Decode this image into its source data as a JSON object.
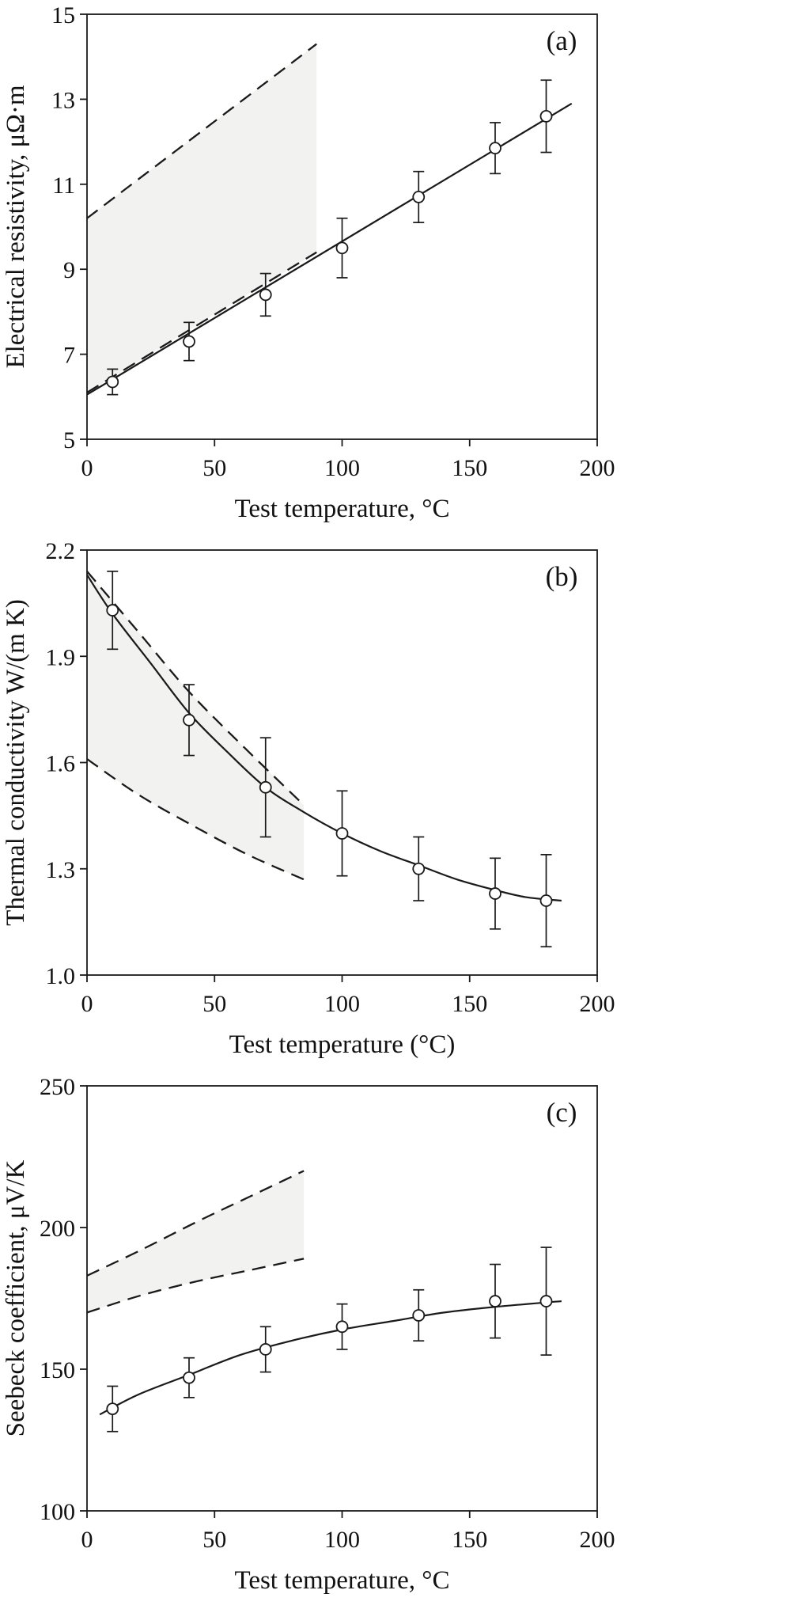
{
  "figure": {
    "background": "#ffffff",
    "ink_color": "#1a1a1a",
    "panel_labels": [
      "(a)",
      "(b)",
      "(c)"
    ]
  },
  "chart_data": [
    {
      "type": "scatter",
      "panel_label": "(a)",
      "xlabel": "Test temperature, °C",
      "ylabel": "Electrical resistivity, μΩ·m",
      "xlim": [
        0,
        200
      ],
      "ylim": [
        5,
        15
      ],
      "xticks": [
        0,
        50,
        100,
        150,
        200
      ],
      "xtick_labels": [
        "0",
        "50",
        "100",
        "150",
        "200"
      ],
      "yticks": [
        5,
        7,
        9,
        11,
        13,
        15
      ],
      "ytick_labels": [
        "5",
        "7",
        "9",
        "11",
        "13",
        "15"
      ],
      "grid": false,
      "legend": null,
      "marker": "open-circle",
      "x": [
        10,
        40,
        70,
        100,
        130,
        160,
        180
      ],
      "y": [
        6.35,
        7.3,
        8.4,
        9.5,
        10.7,
        11.85,
        12.6
      ],
      "y_err": [
        0.3,
        0.45,
        0.5,
        0.7,
        0.6,
        0.6,
        0.85
      ],
      "fit": [
        [
          0,
          6.05
        ],
        [
          190,
          12.9
        ]
      ],
      "band": {
        "fill": "#f2f2f0",
        "upper": [
          [
            0,
            10.2
          ],
          [
            45,
            12.25
          ],
          [
            90,
            14.3
          ]
        ],
        "lower": [
          [
            0,
            6.1
          ],
          [
            45,
            7.75
          ],
          [
            90,
            9.4
          ]
        ]
      }
    },
    {
      "type": "scatter",
      "panel_label": "(b)",
      "xlabel": "Test temperature (°C)",
      "ylabel": "Thermal conductivity W/(m K)",
      "xlim": [
        0,
        200
      ],
      "ylim": [
        1.0,
        2.2
      ],
      "xticks": [
        0,
        50,
        100,
        150,
        200
      ],
      "xtick_labels": [
        "0",
        "50",
        "100",
        "150",
        "200"
      ],
      "yticks": [
        1.0,
        1.3,
        1.6,
        1.9,
        2.2
      ],
      "ytick_labels": [
        "1.0",
        "1.3",
        "1.6",
        "1.9",
        "2.2"
      ],
      "grid": false,
      "legend": null,
      "marker": "open-circle",
      "x": [
        10,
        40,
        70,
        100,
        130,
        160,
        180
      ],
      "y": [
        2.03,
        1.72,
        1.53,
        1.4,
        1.3,
        1.23,
        1.21
      ],
      "y_err": [
        0.11,
        0.1,
        0.14,
        0.12,
        0.09,
        0.1,
        0.13
      ],
      "fit": [
        [
          0,
          2.13
        ],
        [
          10,
          2.02
        ],
        [
          25,
          1.88
        ],
        [
          40,
          1.74
        ],
        [
          55,
          1.63
        ],
        [
          70,
          1.53
        ],
        [
          85,
          1.46
        ],
        [
          100,
          1.4
        ],
        [
          115,
          1.35
        ],
        [
          130,
          1.31
        ],
        [
          145,
          1.27
        ],
        [
          160,
          1.24
        ],
        [
          172,
          1.22
        ],
        [
          186,
          1.21
        ]
      ],
      "band": {
        "fill": "#f2f2f0",
        "upper": [
          [
            0,
            2.14
          ],
          [
            20,
            1.97
          ],
          [
            40,
            1.8
          ],
          [
            62,
            1.64
          ],
          [
            85,
            1.48
          ]
        ],
        "lower": [
          [
            0,
            1.61
          ],
          [
            20,
            1.51
          ],
          [
            42,
            1.42
          ],
          [
            63,
            1.34
          ],
          [
            85,
            1.27
          ]
        ]
      }
    },
    {
      "type": "scatter",
      "panel_label": "(c)",
      "xlabel": "Test temperature, °C",
      "ylabel": "Seebeck coefficient, μV/K",
      "xlim": [
        0,
        200
      ],
      "ylim": [
        100,
        250
      ],
      "xticks": [
        0,
        50,
        100,
        150,
        200
      ],
      "xtick_labels": [
        "0",
        "50",
        "100",
        "150",
        "200"
      ],
      "yticks": [
        100,
        150,
        200,
        250
      ],
      "ytick_labels": [
        "100",
        "150",
        "200",
        "250"
      ],
      "grid": false,
      "legend": null,
      "marker": "open-circle",
      "x": [
        10,
        40,
        70,
        100,
        130,
        160,
        180
      ],
      "y": [
        136,
        147,
        157,
        165,
        169,
        174,
        174
      ],
      "y_err": [
        8,
        7,
        8,
        8,
        9,
        13,
        19
      ],
      "fit": [
        [
          5,
          134
        ],
        [
          20,
          141
        ],
        [
          40,
          148
        ],
        [
          60,
          155
        ],
        [
          80,
          160
        ],
        [
          100,
          164
        ],
        [
          120,
          167
        ],
        [
          140,
          170
        ],
        [
          160,
          172
        ],
        [
          186,
          174
        ]
      ],
      "band": {
        "fill": "#f2f2f0",
        "upper": [
          [
            0,
            183
          ],
          [
            21,
            192
          ],
          [
            43,
            202
          ],
          [
            64,
            211
          ],
          [
            85,
            220
          ]
        ],
        "lower": [
          [
            0,
            170
          ],
          [
            21,
            176
          ],
          [
            43,
            181
          ],
          [
            64,
            185
          ],
          [
            85,
            189
          ]
        ]
      }
    }
  ]
}
